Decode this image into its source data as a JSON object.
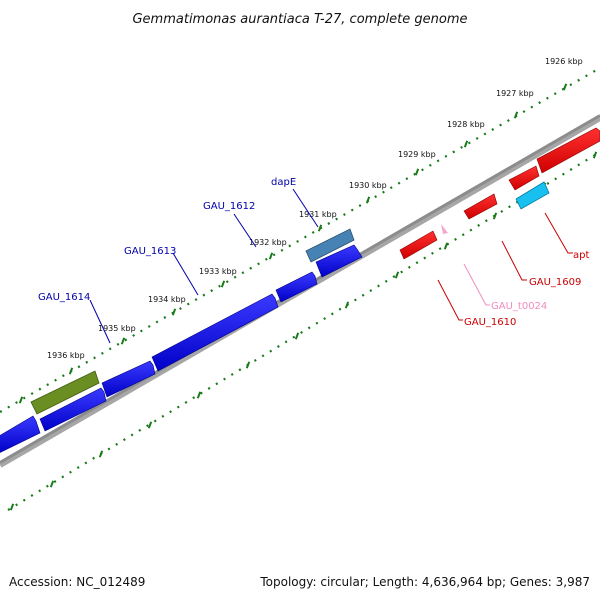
{
  "title": "Gemmatimonas aurantiaca T-27, complete genome",
  "accession": "Accession: NC_012489",
  "summary": "Topology: circular; Length: 4,636,964 bp; Genes: 3,987",
  "colors": {
    "backbone": "#808080",
    "ruler": "#1a7a1a",
    "forward_gene": "#0000e6",
    "forward_label": "#0000aa",
    "reverse_gene": "#e60000",
    "reverse_label": "#cc0000",
    "trna": "#f4a6cc",
    "trna_label": "#f08cbf",
    "olive_feature": "#6b8e23",
    "steel_feature": "#4682b4",
    "cyan_feature": "#18c0f0"
  },
  "ruler_labels": [
    "1926 kbp",
    "1927 kbp",
    "1928 kbp",
    "1929 kbp",
    "1930 kbp",
    "1931 kbp",
    "1932 kbp",
    "1933 kbp",
    "1934 kbp",
    "1935 kbp",
    "1936 kbp"
  ],
  "gene_labels": [
    {
      "text": "dapE",
      "strand": "forward"
    },
    {
      "text": "GAU_1612",
      "strand": "forward"
    },
    {
      "text": "GAU_1613",
      "strand": "forward"
    },
    {
      "text": "GAU_1614",
      "strand": "forward"
    },
    {
      "text": "apt",
      "strand": "reverse"
    },
    {
      "text": "GAU_1609",
      "strand": "reverse"
    },
    {
      "text": "GAU_t0024",
      "strand": "trna"
    },
    {
      "text": "GAU_1610",
      "strand": "reverse"
    }
  ]
}
